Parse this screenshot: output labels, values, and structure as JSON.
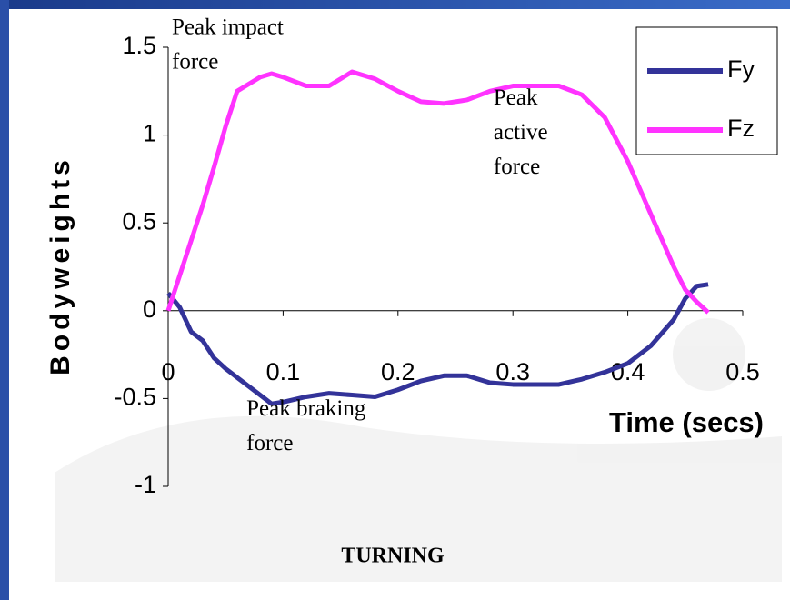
{
  "chart_data": {
    "type": "line",
    "title": "TURNING",
    "x_label": "Time (secs)",
    "y_label": "Bodyweights",
    "x": [
      0,
      0.01,
      0.02,
      0.03,
      0.04,
      0.05,
      0.06,
      0.08,
      0.09,
      0.1,
      0.12,
      0.14,
      0.16,
      0.18,
      0.2,
      0.22,
      0.24,
      0.26,
      0.28,
      0.3,
      0.34,
      0.36,
      0.38,
      0.4,
      0.42,
      0.44,
      0.45,
      0.46,
      0.47
    ],
    "series": [
      {
        "name": "Fy",
        "color": "#333399",
        "values": [
          0.1,
          0.02,
          -0.12,
          -0.17,
          -0.27,
          -0.33,
          -0.38,
          -0.48,
          -0.53,
          -0.52,
          -0.49,
          -0.47,
          -0.48,
          -0.49,
          -0.45,
          -0.4,
          -0.37,
          -0.37,
          -0.41,
          -0.42,
          -0.42,
          -0.39,
          -0.35,
          -0.3,
          -0.2,
          -0.05,
          0.07,
          0.14,
          0.15
        ]
      },
      {
        "name": "Fz",
        "color": "#ff33ff",
        "values": [
          0,
          0.2,
          0.4,
          0.6,
          0.82,
          1.05,
          1.25,
          1.33,
          1.35,
          1.33,
          1.28,
          1.28,
          1.36,
          1.32,
          1.25,
          1.19,
          1.18,
          1.2,
          1.25,
          1.28,
          1.28,
          1.23,
          1.1,
          0.85,
          0.55,
          0.25,
          0.12,
          0.05,
          -0.01
        ]
      }
    ],
    "xlim": [
      0,
      0.5
    ],
    "xticks": [
      0,
      0.1,
      0.2,
      0.3,
      0.4,
      0.5
    ],
    "ylim": [
      -1,
      1.5
    ],
    "yticks": [
      -1,
      -0.5,
      0,
      0.5,
      1,
      1.5
    ],
    "legend": "upper right",
    "annotations": [
      {
        "lines": [
          "Peak impact",
          "force"
        ],
        "x": 0,
        "y": 1.5
      },
      {
        "lines": [
          "Peak",
          "active",
          "force"
        ],
        "x": 0.28,
        "y": 1.1
      },
      {
        "lines": [
          "Peak braking",
          "force"
        ],
        "x": 0.065,
        "y": -0.67
      }
    ]
  }
}
